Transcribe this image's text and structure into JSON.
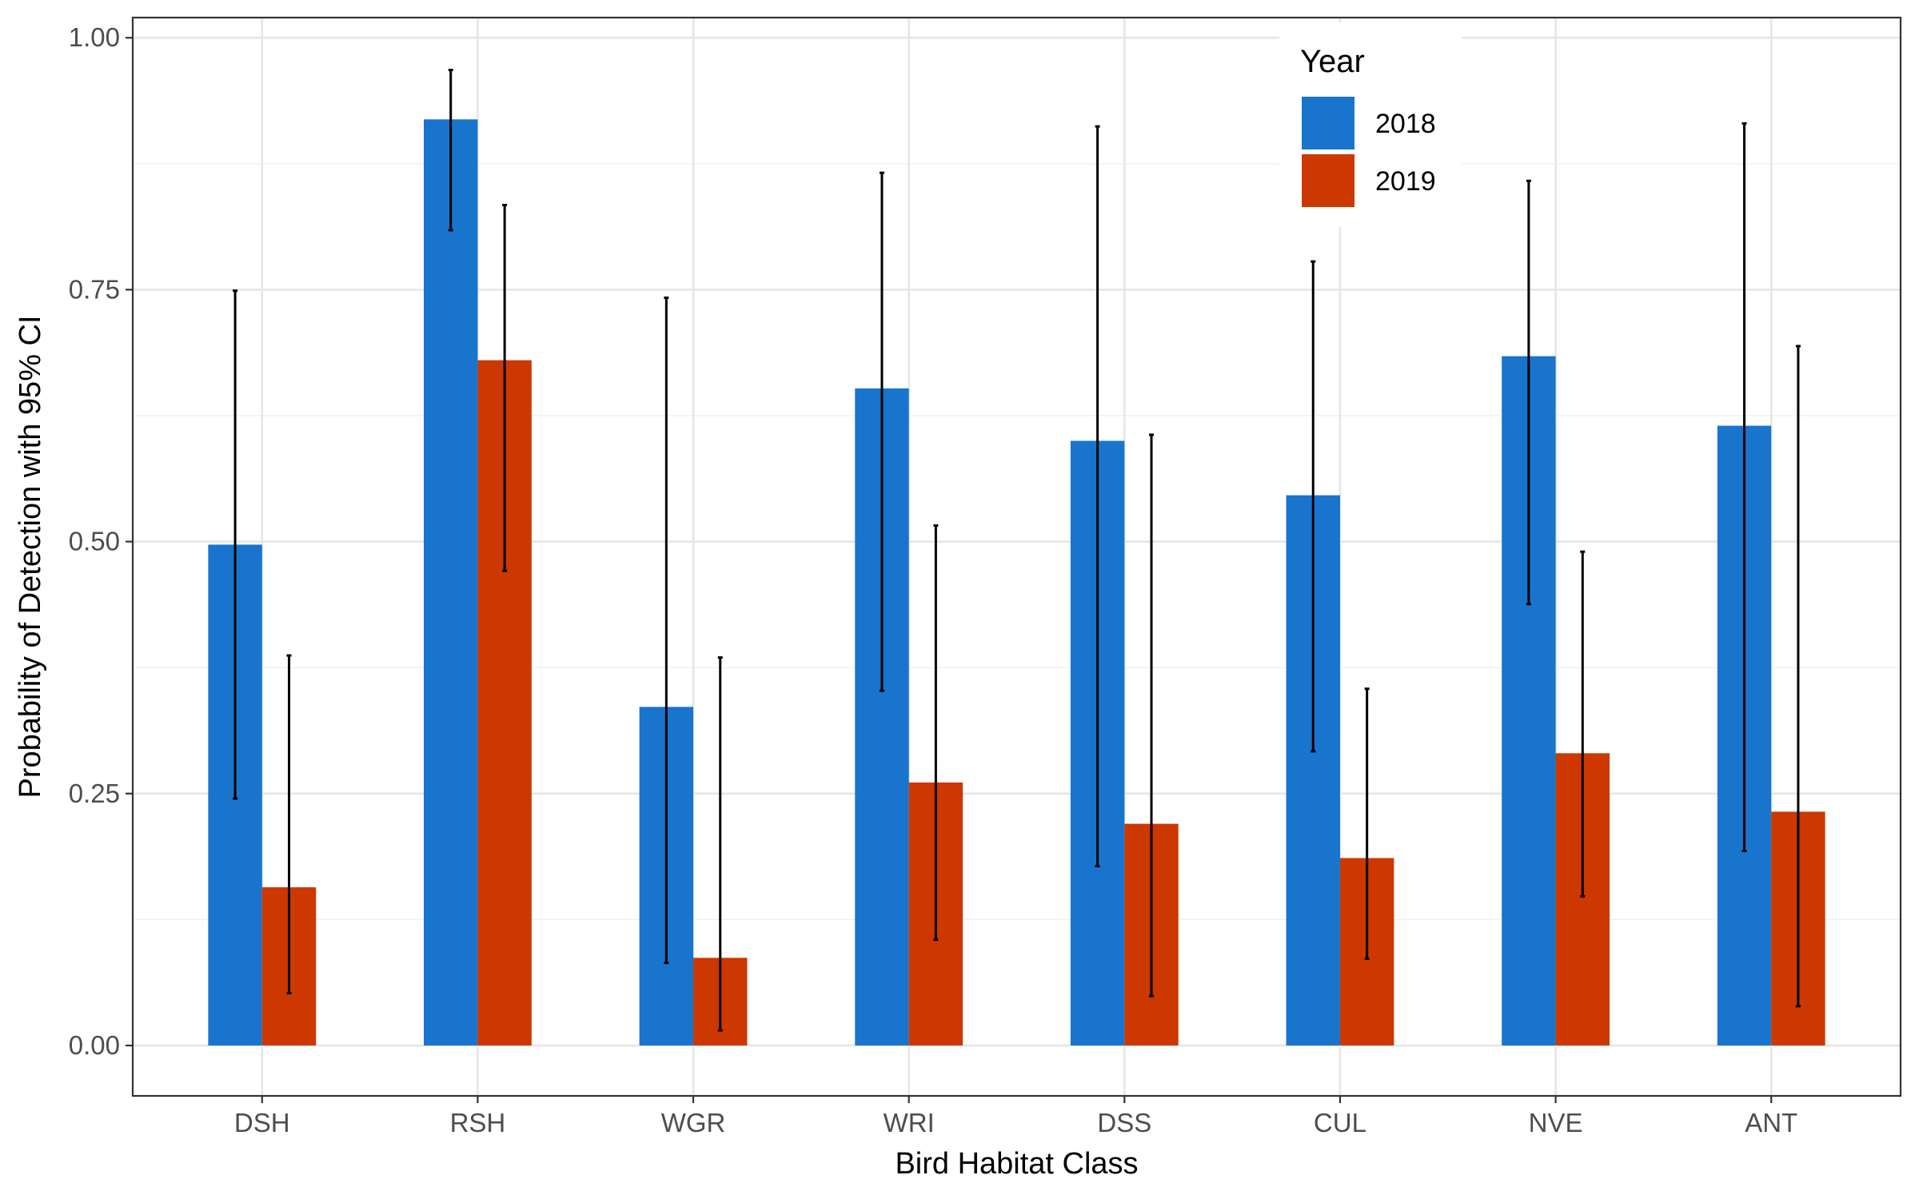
{
  "chart_data": {
    "type": "bar",
    "title": "",
    "xlabel": "Bird Habitat Class",
    "ylabel": "Probability of Detection with 95% CI",
    "categories": [
      "DSH",
      "RSH",
      "WGR",
      "WRI",
      "DSS",
      "CUL",
      "NVE",
      "ANT"
    ],
    "ylim": [
      -0.05,
      1.02
    ],
    "yticks": [
      0.0,
      0.25,
      0.5,
      0.75,
      1.0
    ],
    "ytick_labels": [
      "0.00",
      "0.25",
      "0.50",
      "0.75",
      "1.00"
    ],
    "grid": true,
    "legend": {
      "title": "Year",
      "position": "top-right (inside plot)"
    },
    "series": [
      {
        "name": "2018",
        "color": "#1874CD",
        "values": [
          0.497,
          0.919,
          0.336,
          0.652,
          0.6,
          0.546,
          0.684,
          0.615
        ],
        "ci_low": [
          0.245,
          0.809,
          0.082,
          0.352,
          0.178,
          0.292,
          0.438,
          0.193
        ],
        "ci_high": [
          0.749,
          0.968,
          0.742,
          0.866,
          0.912,
          0.778,
          0.858,
          0.915
        ]
      },
      {
        "name": "2019",
        "color": "#CD3700",
        "values": [
          0.157,
          0.68,
          0.087,
          0.261,
          0.22,
          0.186,
          0.29,
          0.232
        ],
        "ci_low": [
          0.052,
          0.471,
          0.015,
          0.105,
          0.049,
          0.086,
          0.148,
          0.039
        ],
        "ci_high": [
          0.387,
          0.834,
          0.385,
          0.516,
          0.606,
          0.354,
          0.49,
          0.694
        ]
      }
    ]
  }
}
